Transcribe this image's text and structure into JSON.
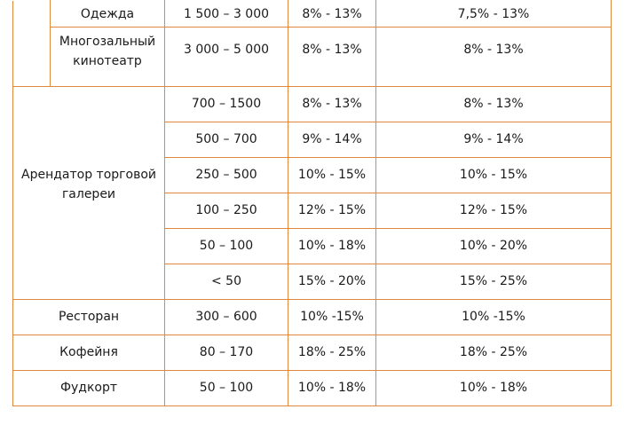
{
  "rows_top": [
    {
      "sub": "Одежда",
      "area": "1 500 – 3 000",
      "rate1": "8% - 13%",
      "rate2": "7,5% - 13%"
    },
    {
      "sub_line1": "Многозальный",
      "sub_line2": "кинотеатр",
      "area": "3 000 – 5 000",
      "rate1": "8% - 13%",
      "rate2": "8% - 13%"
    }
  ],
  "gallery": {
    "label_line1": "Арендатор торговой",
    "label_line2": "галереи",
    "rows": [
      {
        "area": "700 – 1500",
        "rate1": "8% - 13%",
        "rate2": "8% - 13%"
      },
      {
        "area": "500 – 700",
        "rate1": "9% - 14%",
        "rate2": "9% - 14%"
      },
      {
        "area": "250 – 500",
        "rate1": "10% - 15%",
        "rate2": "10% - 15%"
      },
      {
        "area": "100 – 250",
        "rate1": "12% - 15%",
        "rate2": "12% - 15%"
      },
      {
        "area": "50 – 100",
        "rate1": "10% - 18%",
        "rate2": "10% - 20%"
      },
      {
        "area": "< 50",
        "rate1": "15% - 20%",
        "rate2": "15% - 25%"
      }
    ]
  },
  "rows_bottom": [
    {
      "name": "Ресторан",
      "area": "300 – 600",
      "rate1": "10% -15%",
      "rate2": "10% -15%"
    },
    {
      "name": "Кофейня",
      "area": "80 – 170",
      "rate1": "18% - 25%",
      "rate2": "18% - 25%"
    },
    {
      "name": "Фудкорт",
      "area": "50 – 100",
      "rate1": "10% - 18%",
      "rate2": "10% - 18%"
    }
  ],
  "colors": {
    "border": "#e0883c",
    "text": "#1a1a1a",
    "background": "#ffffff"
  }
}
